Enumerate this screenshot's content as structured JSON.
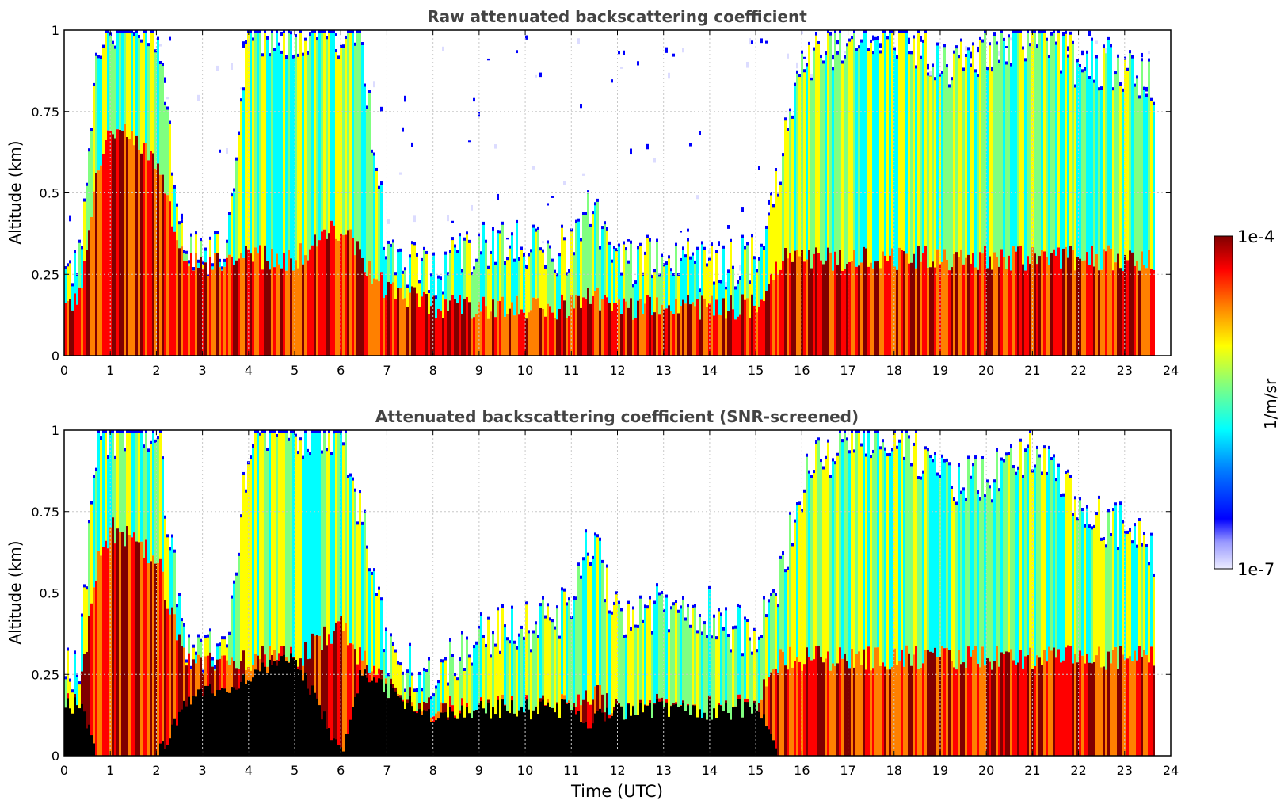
{
  "colors": {
    "jet": [
      "#00008f",
      "#0000ff",
      "#0080ff",
      "#00ffff",
      "#80ff80",
      "#ffff00",
      "#ff8000",
      "#ff0000",
      "#800000"
    ],
    "low_tint": "#dcdcff",
    "screened_black": "#000000",
    "grid": "#c8c8c8",
    "title_text": "#444444"
  },
  "colorbar": {
    "max_label": "1e-4",
    "min_label": "1e-7",
    "unit_label": "1/m/sr",
    "colormap": "jet",
    "scale": "log",
    "range": [
      1e-07,
      0.0001
    ]
  },
  "chart_data": [
    {
      "type": "heatmap",
      "title": "Raw attenuated backscattering coefficient",
      "xlabel": "",
      "ylabel": "Altitude (km)",
      "xlim": [
        0,
        24
      ],
      "ylim": [
        0,
        1
      ],
      "xticks": [
        "0",
        "1",
        "2",
        "3",
        "4",
        "5",
        "6",
        "7",
        "8",
        "9",
        "10",
        "11",
        "12",
        "13",
        "14",
        "15",
        "16",
        "17",
        "18",
        "19",
        "20",
        "21",
        "22",
        "23",
        "24"
      ],
      "yticks": [
        "0",
        "0.25",
        "0.5",
        "0.75",
        "1"
      ],
      "grid": true,
      "data_end_time": 23.65,
      "profile": {
        "x": [
          0,
          0.3,
          0.7,
          1.0,
          2.0,
          2.6,
          3.0,
          3.5,
          4.0,
          5.0,
          6.0,
          6.4,
          7.0,
          8.0,
          9.0,
          10.0,
          11.0,
          11.3,
          12.0,
          13.0,
          14.0,
          15.0,
          15.5,
          16.0,
          17.0,
          18.0,
          19.0,
          20.0,
          21.0,
          22.0,
          23.0,
          23.65
        ],
        "signal_top_km": [
          0.25,
          0.28,
          1.0,
          1.0,
          1.0,
          0.3,
          0.32,
          0.35,
          1.0,
          1.0,
          1.0,
          1.0,
          0.3,
          0.25,
          0.35,
          0.35,
          0.32,
          0.5,
          0.3,
          0.3,
          0.28,
          0.3,
          0.6,
          0.9,
          1.0,
          1.0,
          0.9,
          0.95,
          1.0,
          0.9,
          0.9,
          0.85
        ],
        "layer_top_km": [
          0.15,
          0.17,
          0.6,
          0.7,
          0.6,
          0.28,
          0.28,
          0.3,
          0.3,
          0.3,
          0.4,
          0.3,
          0.2,
          0.15,
          0.15,
          0.15,
          0.15,
          0.2,
          0.15,
          0.15,
          0.15,
          0.15,
          0.3,
          0.3,
          0.3,
          0.3,
          0.3,
          0.3,
          0.3,
          0.3,
          0.3,
          0.3
        ]
      }
    },
    {
      "type": "heatmap",
      "title": "Attenuated backscattering coefficient (SNR-screened)",
      "xlabel": "Time (UTC)",
      "ylabel": "Altitude (km)",
      "xlim": [
        0,
        24
      ],
      "ylim": [
        0,
        1
      ],
      "xticks": [
        "0",
        "1",
        "2",
        "3",
        "4",
        "5",
        "6",
        "7",
        "8",
        "9",
        "10",
        "11",
        "12",
        "13",
        "14",
        "15",
        "16",
        "17",
        "18",
        "19",
        "20",
        "21",
        "22",
        "23",
        "24"
      ],
      "yticks": [
        "0",
        "0.25",
        "0.5",
        "0.75",
        "1"
      ],
      "grid": true,
      "data_end_time": 23.65,
      "profile": {
        "x": [
          0,
          0.3,
          0.7,
          1.0,
          2.0,
          2.6,
          3.0,
          3.5,
          4.0,
          5.0,
          6.0,
          6.4,
          7.0,
          8.0,
          9.0,
          10.0,
          11.0,
          11.3,
          12.0,
          13.0,
          14.0,
          15.0,
          15.5,
          16.0,
          17.0,
          18.0,
          19.0,
          20.0,
          21.0,
          22.0,
          23.0,
          23.65
        ],
        "signal_top_km": [
          0.25,
          0.28,
          1.0,
          1.0,
          1.0,
          0.3,
          0.32,
          0.35,
          1.0,
          1.0,
          1.0,
          0.75,
          0.3,
          0.25,
          0.38,
          0.4,
          0.45,
          0.7,
          0.45,
          0.45,
          0.45,
          0.35,
          0.55,
          0.85,
          1.0,
          1.0,
          0.85,
          0.85,
          0.95,
          0.75,
          0.7,
          0.6
        ],
        "layer_top_km": [
          0.15,
          0.17,
          0.6,
          0.7,
          0.6,
          0.28,
          0.28,
          0.3,
          0.3,
          0.3,
          0.4,
          0.3,
          0.2,
          0.15,
          0.15,
          0.15,
          0.15,
          0.2,
          0.15,
          0.15,
          0.15,
          0.15,
          0.3,
          0.3,
          0.3,
          0.3,
          0.3,
          0.3,
          0.3,
          0.3,
          0.3,
          0.3
        ],
        "black_core_top_km": [
          0.15,
          0.17,
          0.0,
          0.0,
          0.0,
          0.15,
          0.2,
          0.2,
          0.25,
          0.3,
          0.0,
          0.25,
          0.2,
          0.12,
          0.15,
          0.15,
          0.15,
          0.1,
          0.15,
          0.15,
          0.15,
          0.15,
          0.0,
          0.0,
          0.0,
          0.0,
          0.0,
          0.0,
          0.0,
          0.0,
          0.0,
          0.0
        ]
      }
    }
  ]
}
